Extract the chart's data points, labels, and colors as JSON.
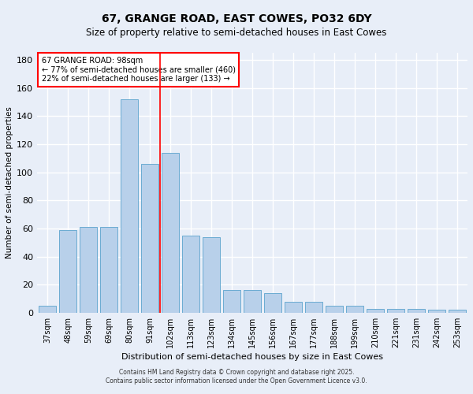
{
  "title": "67, GRANGE ROAD, EAST COWES, PO32 6DY",
  "subtitle": "Size of property relative to semi-detached houses in East Cowes",
  "xlabel": "Distribution of semi-detached houses by size in East Cowes",
  "ylabel": "Number of semi-detached properties",
  "categories": [
    "37sqm",
    "48sqm",
    "59sqm",
    "69sqm",
    "80sqm",
    "91sqm",
    "102sqm",
    "113sqm",
    "123sqm",
    "134sqm",
    "145sqm",
    "156sqm",
    "167sqm",
    "177sqm",
    "188sqm",
    "199sqm",
    "210sqm",
    "221sqm",
    "231sqm",
    "242sqm",
    "253sqm"
  ],
  "values": [
    5,
    59,
    61,
    61,
    152,
    106,
    114,
    55,
    54,
    16,
    16,
    14,
    8,
    8,
    5,
    5,
    3,
    3,
    3,
    2,
    2
  ],
  "bar_color": "#b8d0ea",
  "bar_edge_color": "#6aabd2",
  "background_color": "#e8eef8",
  "grid_color": "#ffffff",
  "vline_x": 6.0,
  "vline_color": "red",
  "annotation_title": "67 GRANGE ROAD: 98sqm",
  "annotation_line1": "← 77% of semi-detached houses are smaller (460)",
  "annotation_line2": "22% of semi-detached houses are larger (133) →",
  "ylim": [
    0,
    185
  ],
  "yticks": [
    0,
    20,
    40,
    60,
    80,
    100,
    120,
    140,
    160,
    180
  ],
  "title_fontsize": 10,
  "subtitle_fontsize": 8.5,
  "footer1": "Contains HM Land Registry data © Crown copyright and database right 2025.",
  "footer2": "Contains public sector information licensed under the Open Government Licence v3.0."
}
